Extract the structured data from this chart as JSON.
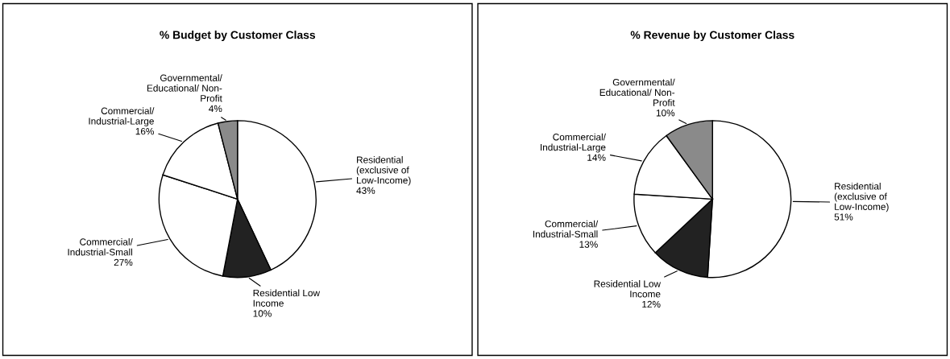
{
  "chart_data": [
    {
      "type": "pie",
      "title": "% Budget by Customer Class",
      "categories": [
        "Residential\n(exclusive of\nLow-Income)",
        "Residential Low\nIncome",
        "Commercial/\nIndustrial-Small",
        "Commercial/\nIndustrial-Large",
        "Governmental/\nEducational/ Non-\nProfit"
      ],
      "values": [
        43,
        10,
        27,
        16,
        4
      ],
      "value_labels": [
        "43%",
        "10%",
        "27%",
        "16%",
        "4%"
      ],
      "colors": [
        "#ffffff",
        "#222222",
        "#ffffff",
        "#ffffff",
        "#8a8a8a"
      ]
    },
    {
      "type": "pie",
      "title": "% Revenue by Customer Class",
      "categories": [
        "Residential\n(exclusive of\nLow-Income)",
        "Residential Low\nIncome",
        "Commercial/\nIndustrial-Small",
        "Commercial/\nIndustrial-Large",
        "Governmental/\nEducational/ Non-\nProfit"
      ],
      "values": [
        51,
        12,
        13,
        14,
        10
      ],
      "value_labels": [
        "51%",
        "12%",
        "13%",
        "14%",
        "10%"
      ],
      "colors": [
        "#ffffff",
        "#222222",
        "#ffffff",
        "#ffffff",
        "#8a8a8a"
      ]
    }
  ]
}
